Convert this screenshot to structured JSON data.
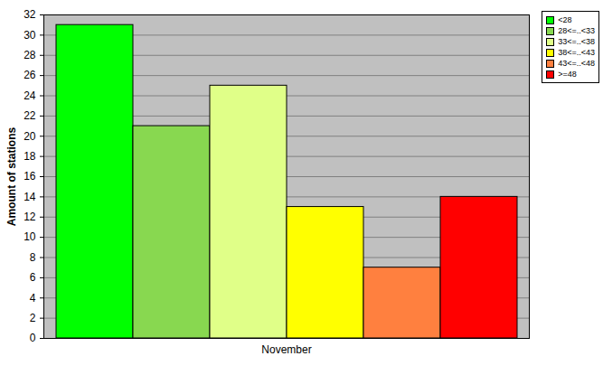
{
  "chart_data": {
    "type": "bar",
    "y_label": "Amount of stations",
    "categories": [
      "November"
    ],
    "series": [
      {
        "name": "<28",
        "color": "#00ff00",
        "values": [
          31
        ]
      },
      {
        "name": "28<=..<33",
        "color": "#88d850",
        "values": [
          21
        ]
      },
      {
        "name": "33<=..<38",
        "color": "#e0ff88",
        "values": [
          25
        ]
      },
      {
        "name": "38<=..<43",
        "color": "#ffff00",
        "values": [
          13
        ]
      },
      {
        "name": "43<=..<48",
        "color": "#ff803f",
        "values": [
          7
        ]
      },
      {
        "name": ">=48",
        "color": "#ff0000",
        "values": [
          14
        ]
      }
    ],
    "ylim": [
      0,
      32
    ],
    "yticks": [
      0,
      2,
      4,
      6,
      8,
      10,
      12,
      14,
      16,
      18,
      20,
      22,
      24,
      26,
      28,
      30,
      32
    ],
    "grid": true,
    "legend": "top-right"
  }
}
